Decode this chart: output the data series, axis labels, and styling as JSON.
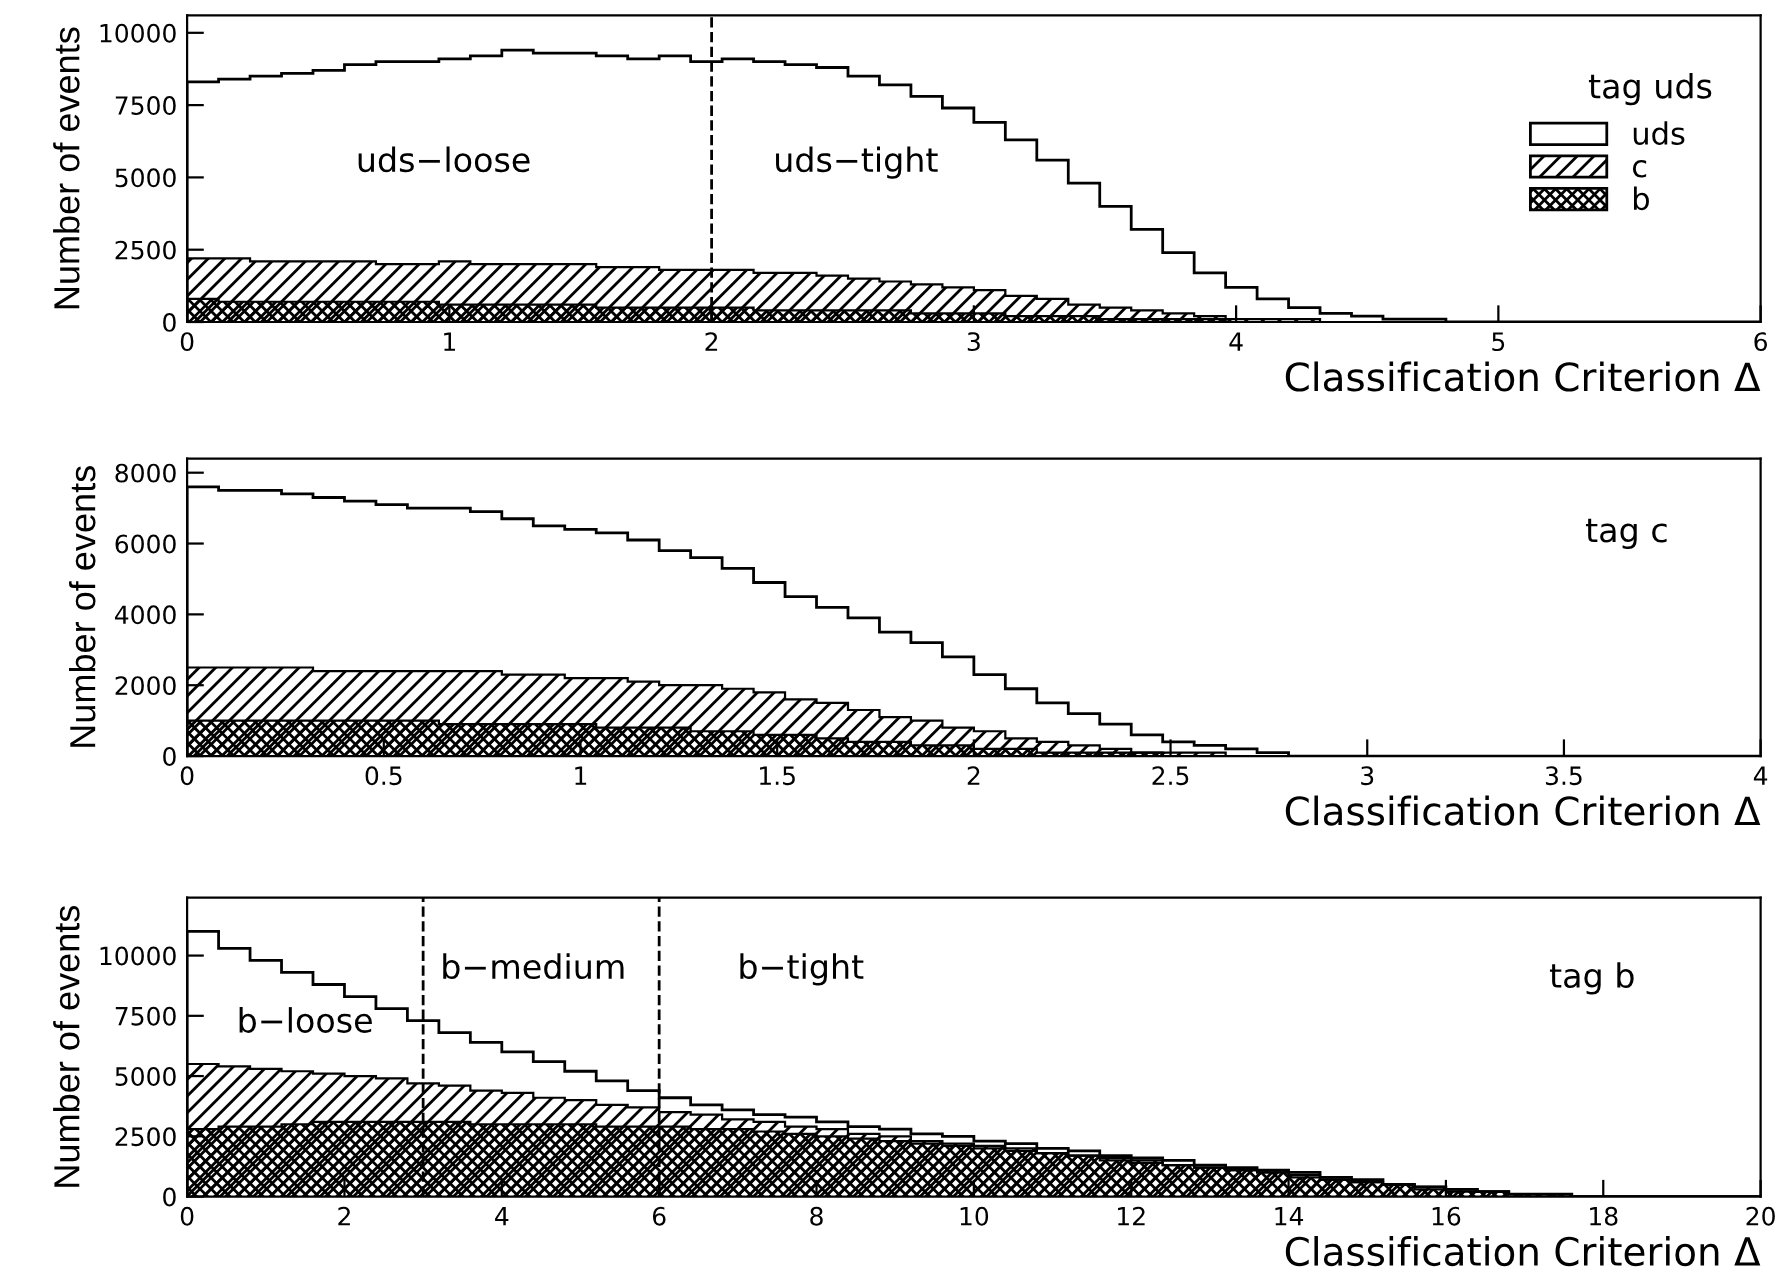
{
  "chart_data": [
    {
      "type": "histogram",
      "xlabel": "Classification Criterion Δ",
      "ylabel": "Number of events",
      "legend": "right",
      "grid": false,
      "bins": [
        0,
        0.12,
        0.24,
        0.36,
        0.48,
        0.6,
        0.72,
        0.84,
        0.96,
        1.08,
        1.2,
        1.32,
        1.44,
        1.56,
        1.68,
        1.8,
        1.92,
        2.04,
        2.16,
        2.28,
        2.4,
        2.52,
        2.64,
        2.76,
        2.88,
        3,
        3.12,
        3.24,
        3.36,
        3.48,
        3.6,
        3.72,
        3.84,
        3.96,
        4.08,
        4.2,
        4.32,
        4.44,
        4.56,
        4.68,
        4.8,
        4.92,
        5.04,
        5.16,
        5.28,
        5.4,
        5.52,
        5.64,
        5.76,
        5.88,
        6
      ],
      "series": [
        {
          "name": "uds",
          "color": "#000000",
          "values": [
            8300,
            8400,
            8500,
            8600,
            8700,
            8900,
            9000,
            9000,
            9100,
            9200,
            9400,
            9300,
            9300,
            9200,
            9100,
            9200,
            9000,
            9100,
            9000,
            8900,
            8800,
            8500,
            8200,
            7800,
            7400,
            6900,
            6300,
            5600,
            4800,
            4000,
            3200,
            2400,
            1700,
            1200,
            800,
            500,
            300,
            200,
            100,
            100,
            0,
            0,
            0,
            0,
            0,
            0,
            0,
            0,
            0,
            0
          ]
        },
        {
          "name": "c",
          "color": "#000000",
          "values": [
            2200,
            2200,
            2100,
            2100,
            2100,
            2100,
            2000,
            2000,
            2100,
            2000,
            2000,
            2000,
            2000,
            1900,
            1900,
            1800,
            1800,
            1800,
            1700,
            1700,
            1600,
            1500,
            1400,
            1300,
            1200,
            1100,
            900,
            800,
            600,
            500,
            400,
            300,
            200,
            100,
            100,
            100,
            0,
            0,
            0,
            0,
            0,
            0,
            0,
            0,
            0,
            0,
            0,
            0,
            0,
            0
          ]
        },
        {
          "name": "b",
          "color": "#000000",
          "values": [
            800,
            700,
            700,
            700,
            700,
            700,
            700,
            700,
            600,
            600,
            600,
            600,
            600,
            500,
            500,
            500,
            500,
            500,
            400,
            400,
            400,
            400,
            400,
            300,
            300,
            300,
            200,
            200,
            200,
            100,
            100,
            100,
            100,
            0,
            0,
            0,
            0,
            0,
            0,
            0,
            0,
            0,
            0,
            0,
            0,
            0,
            0,
            0,
            0,
            0
          ]
        }
      ],
      "xlim": [
        0,
        6
      ],
      "xticks": [
        0,
        1,
        2,
        3,
        4,
        5,
        6
      ],
      "ylim": [
        0,
        10600
      ],
      "yticks": [
        0,
        2500,
        5000,
        7500,
        10000
      ],
      "ref_lines": [
        {
          "axis": "x",
          "value": 2,
          "line_style": "dashed"
        }
      ],
      "annotations": [
        "uds−loose",
        "uds−tight",
        "tag uds"
      ]
    },
    {
      "type": "histogram",
      "xlabel": "Classification Criterion Δ",
      "ylabel": "Number of events",
      "legend": false,
      "grid": false,
      "bins": [
        0,
        0.08,
        0.16,
        0.24,
        0.32,
        0.4,
        0.48,
        0.56,
        0.64,
        0.72,
        0.8,
        0.88,
        0.96,
        1.04,
        1.12,
        1.2,
        1.28,
        1.36,
        1.44,
        1.52,
        1.6,
        1.68,
        1.76,
        1.84,
        1.92,
        2,
        2.08,
        2.16,
        2.24,
        2.32,
        2.4,
        2.48,
        2.56,
        2.64,
        2.72,
        2.8,
        2.88,
        2.96,
        3.04,
        3.12,
        3.2,
        3.28,
        3.36,
        3.44,
        3.52,
        3.6,
        3.68,
        3.76,
        3.84,
        3.92,
        4
      ],
      "series": [
        {
          "color": "#000000",
          "values": [
            7600,
            7500,
            7500,
            7400,
            7300,
            7200,
            7100,
            7000,
            7000,
            6900,
            6700,
            6500,
            6400,
            6300,
            6100,
            5800,
            5600,
            5300,
            4900,
            4500,
            4200,
            3900,
            3500,
            3200,
            2800,
            2300,
            1900,
            1500,
            1200,
            900,
            600,
            400,
            300,
            200,
            100,
            0,
            0,
            0,
            0,
            0,
            0,
            0,
            0,
            0,
            0,
            0,
            0,
            0,
            0,
            0
          ]
        },
        {
          "color": "#000000",
          "values": [
            2500,
            2500,
            2500,
            2500,
            2400,
            2400,
            2400,
            2400,
            2400,
            2400,
            2300,
            2300,
            2200,
            2200,
            2100,
            2000,
            2000,
            1900,
            1800,
            1600,
            1500,
            1300,
            1100,
            1000,
            800,
            700,
            500,
            400,
            300,
            200,
            100,
            100,
            100,
            0,
            0,
            0,
            0,
            0,
            0,
            0,
            0,
            0,
            0,
            0,
            0,
            0,
            0,
            0,
            0,
            0
          ]
        },
        {
          "color": "#000000",
          "values": [
            1000,
            1000,
            1000,
            1000,
            1000,
            1000,
            1000,
            1000,
            900,
            900,
            900,
            900,
            900,
            800,
            800,
            800,
            700,
            700,
            600,
            600,
            500,
            400,
            400,
            300,
            300,
            200,
            200,
            100,
            100,
            100,
            100,
            0,
            0,
            0,
            0,
            0,
            0,
            0,
            0,
            0,
            0,
            0,
            0,
            0,
            0,
            0,
            0,
            0,
            0,
            0
          ]
        }
      ],
      "xlim": [
        0,
        4
      ],
      "xticks": [
        0,
        0.5,
        1,
        1.5,
        2,
        2.5,
        3,
        3.5,
        4
      ],
      "ylim": [
        0,
        8400
      ],
      "yticks": [
        0,
        2000,
        4000,
        6000,
        8000
      ],
      "annotations": [
        "tag c"
      ]
    },
    {
      "type": "histogram",
      "xlabel": "Classification Criterion Δ",
      "ylabel": "Number of events",
      "legend": false,
      "grid": false,
      "bins": [
        0,
        0.4,
        0.8,
        1.2,
        1.6,
        2,
        2.4,
        2.8,
        3.2,
        3.6,
        4,
        4.4,
        4.8,
        5.2,
        5.6,
        6,
        6.4,
        6.8,
        7.2,
        7.6,
        8,
        8.4,
        8.8,
        9.2,
        9.6,
        10,
        10.4,
        10.8,
        11.2,
        11.6,
        12,
        12.4,
        12.8,
        13.2,
        13.6,
        14,
        14.4,
        14.8,
        15.2,
        15.6,
        16,
        16.4,
        16.8,
        17.2,
        17.6,
        18,
        18.4,
        18.8,
        19.2,
        19.6,
        20
      ],
      "series": [
        {
          "color": "#000000",
          "values": [
            11000,
            10300,
            9800,
            9300,
            8800,
            8300,
            7800,
            7300,
            6800,
            6400,
            6000,
            5600,
            5200,
            4800,
            4400,
            4100,
            3800,
            3600,
            3400,
            3300,
            3100,
            2900,
            2800,
            2600,
            2500,
            2300,
            2200,
            2000,
            1900,
            1700,
            1600,
            1500,
            1300,
            1200,
            1100,
            1000,
            800,
            700,
            500,
            400,
            300,
            200,
            100,
            100,
            0,
            0,
            0,
            0,
            0,
            0
          ]
        },
        {
          "color": "#000000",
          "values": [
            5500,
            5400,
            5300,
            5200,
            5100,
            5000,
            4900,
            4700,
            4600,
            4400,
            4300,
            4100,
            4000,
            3800,
            3700,
            3500,
            3400,
            3200,
            3100,
            2900,
            2800,
            2600,
            2500,
            2300,
            2200,
            2100,
            2000,
            1800,
            1700,
            1600,
            1500,
            1300,
            1200,
            1100,
            1000,
            900,
            700,
            600,
            500,
            400,
            300,
            200,
            100,
            100,
            0,
            0,
            0,
            0,
            0,
            0
          ]
        },
        {
          "color": "#000000",
          "values": [
            2800,
            2900,
            2900,
            3000,
            3100,
            3100,
            3100,
            3100,
            3100,
            3000,
            3000,
            3000,
            3000,
            2900,
            2900,
            2900,
            2800,
            2800,
            2700,
            2600,
            2500,
            2400,
            2300,
            2200,
            2100,
            2000,
            1900,
            1800,
            1700,
            1500,
            1400,
            1300,
            1200,
            1100,
            1000,
            800,
            700,
            600,
            500,
            300,
            200,
            200,
            100,
            100,
            0,
            0,
            0,
            0,
            0,
            0
          ]
        }
      ],
      "xlim": [
        0,
        20
      ],
      "xticks": [
        0,
        2,
        4,
        6,
        8,
        10,
        12,
        14,
        16,
        18,
        20
      ],
      "ylim": [
        0,
        12400
      ],
      "yticks": [
        0,
        2500,
        5000,
        7500,
        10000
      ],
      "ref_lines": [
        {
          "axis": "x",
          "value": 3,
          "line_style": "dashed"
        },
        {
          "axis": "x",
          "value": 6,
          "line_style": "dashed"
        }
      ],
      "annotations": [
        "b−loose",
        "b−medium",
        "b−tight",
        "tag b"
      ]
    }
  ]
}
